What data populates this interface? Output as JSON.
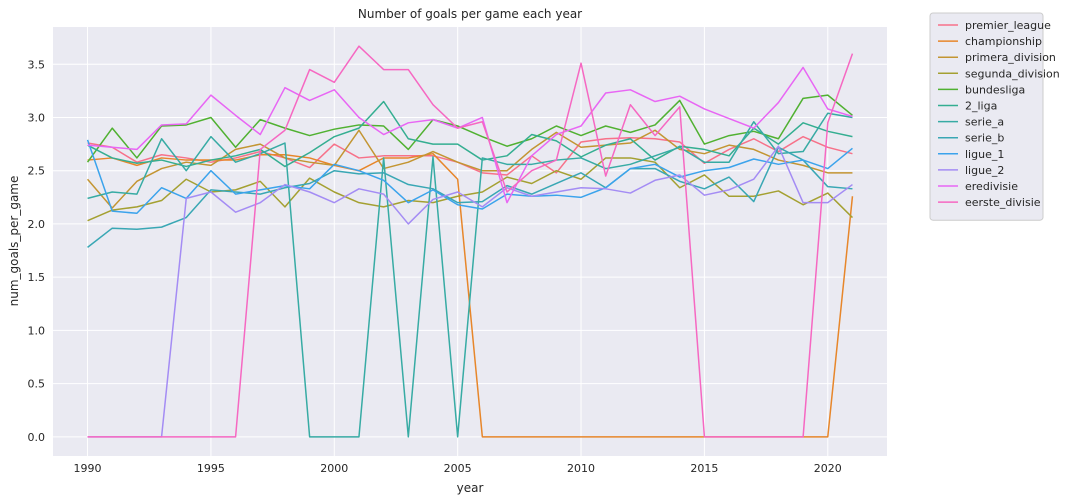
{
  "chart_data": {
    "type": "line",
    "title": "Number of goals per game each year",
    "xlabel": "year",
    "ylabel": "num_goals_per_game",
    "xlim": [
      1988.6,
      2022.4
    ],
    "ylim": [
      -0.18,
      3.85
    ],
    "xticks": [
      1990,
      1995,
      2000,
      2005,
      2010,
      2015,
      2020
    ],
    "yticks": [
      0.0,
      0.5,
      1.0,
      1.5,
      2.0,
      2.5,
      3.0,
      3.5
    ],
    "ytick_labels": [
      "0.0",
      "0.5",
      "1.0",
      "1.5",
      "2.0",
      "2.5",
      "3.0",
      "3.5"
    ],
    "grid": true,
    "legend_position": "outside-top-right",
    "x": [
      1990,
      1991,
      1992,
      1993,
      1994,
      1995,
      1996,
      1997,
      1998,
      1999,
      2000,
      2001,
      2002,
      2003,
      2004,
      2005,
      2006,
      2007,
      2008,
      2009,
      2010,
      2011,
      2012,
      2013,
      2014,
      2015,
      2016,
      2017,
      2018,
      2019,
      2020,
      2021
    ],
    "series": [
      {
        "name": "premier_league",
        "color": "#f77189",
        "values": [
          2.76,
          2.72,
          2.58,
          2.65,
          2.62,
          2.58,
          2.62,
          2.68,
          2.62,
          2.53,
          2.75,
          2.62,
          2.64,
          2.64,
          2.64,
          2.58,
          2.48,
          2.46,
          2.64,
          2.48,
          2.77,
          2.8,
          2.81,
          2.8,
          2.77,
          2.57,
          2.7,
          2.8,
          2.68,
          2.82,
          2.72,
          2.66
        ]
      },
      {
        "name": "championship",
        "color": "#e7862a",
        "values": [
          2.6,
          2.62,
          2.55,
          2.62,
          2.6,
          2.6,
          2.6,
          2.65,
          2.65,
          2.62,
          2.55,
          2.5,
          2.62,
          2.62,
          2.66,
          2.42,
          0,
          0,
          0,
          0,
          0,
          0,
          0,
          0,
          0,
          0,
          0,
          0,
          0,
          0,
          0,
          2.26
        ]
      },
      {
        "name": "primera_division",
        "color": "#c39532",
        "values": [
          2.42,
          2.15,
          2.4,
          2.52,
          2.58,
          2.55,
          2.7,
          2.75,
          2.62,
          2.58,
          2.55,
          2.88,
          2.52,
          2.58,
          2.68,
          2.58,
          2.5,
          2.5,
          2.7,
          2.86,
          2.72,
          2.74,
          2.76,
          2.88,
          2.7,
          2.66,
          2.74,
          2.7,
          2.6,
          2.55,
          2.48,
          2.48
        ]
      },
      {
        "name": "segunda_division",
        "color": "#a4a031",
        "values": [
          2.03,
          2.13,
          2.16,
          2.22,
          2.42,
          2.3,
          2.32,
          2.4,
          2.16,
          2.43,
          2.3,
          2.2,
          2.16,
          2.22,
          2.2,
          2.26,
          2.3,
          2.44,
          2.38,
          2.5,
          2.42,
          2.62,
          2.62,
          2.58,
          2.34,
          2.46,
          2.26,
          2.26,
          2.31,
          2.18,
          2.29,
          2.06
        ]
      },
      {
        "name": "bundesliga",
        "color": "#50b131",
        "values": [
          2.58,
          2.9,
          2.62,
          2.92,
          2.93,
          3.0,
          2.72,
          2.98,
          2.9,
          2.83,
          2.89,
          2.93,
          2.92,
          2.7,
          2.98,
          2.92,
          2.82,
          2.73,
          2.8,
          2.92,
          2.83,
          2.92,
          2.86,
          2.93,
          3.16,
          2.75,
          2.83,
          2.87,
          2.8,
          3.18,
          3.21,
          3.02
        ]
      },
      {
        "name": "2_liga",
        "color": "#34ae91",
        "values": [
          2.74,
          2.62,
          2.57,
          2.6,
          2.54,
          2.6,
          2.64,
          2.7,
          2.54,
          2.67,
          2.82,
          2.9,
          3.15,
          2.8,
          2.75,
          2.75,
          2.6,
          2.64,
          2.84,
          2.78,
          2.63,
          2.74,
          2.8,
          2.6,
          2.73,
          2.7,
          2.64,
          2.9,
          2.75,
          2.95,
          2.87,
          2.82
        ]
      },
      {
        "name": "serie_a",
        "color": "#37aba4",
        "values": [
          2.24,
          2.3,
          2.28,
          2.8,
          2.5,
          2.82,
          2.58,
          2.66,
          2.76,
          0,
          0,
          0,
          2.62,
          0,
          2.63,
          0,
          2.62,
          2.56,
          2.56,
          2.6,
          2.62,
          2.52,
          2.56,
          2.64,
          2.72,
          2.58,
          2.58,
          2.96,
          2.66,
          2.68,
          3.04,
          3.0
        ]
      },
      {
        "name": "serie_b",
        "color": "#39a7b4",
        "values": [
          1.78,
          1.96,
          1.95,
          1.97,
          2.06,
          2.32,
          2.3,
          2.28,
          2.34,
          2.38,
          2.5,
          2.47,
          2.48,
          2.37,
          2.33,
          2.2,
          2.21,
          2.36,
          2.28,
          2.38,
          2.48,
          2.34,
          2.52,
          2.52,
          2.4,
          2.33,
          2.44,
          2.21,
          2.72,
          2.6,
          2.35,
          2.33
        ]
      },
      {
        "name": "ligue_1",
        "color": "#3ba3ec",
        "values": [
          2.79,
          2.12,
          2.1,
          2.34,
          2.24,
          2.5,
          2.28,
          2.32,
          2.36,
          2.33,
          2.56,
          2.5,
          2.41,
          2.2,
          2.32,
          2.18,
          2.14,
          2.28,
          2.26,
          2.27,
          2.25,
          2.34,
          2.52,
          2.56,
          2.44,
          2.5,
          2.53,
          2.61,
          2.56,
          2.6,
          2.52,
          2.71
        ]
      },
      {
        "name": "ligue_2",
        "color": "#a48cf4",
        "values": [
          0,
          0,
          0,
          0,
          2.24,
          2.3,
          2.11,
          2.2,
          2.37,
          2.3,
          2.2,
          2.33,
          2.28,
          2.0,
          2.23,
          2.3,
          2.16,
          2.34,
          2.26,
          2.3,
          2.34,
          2.33,
          2.29,
          2.41,
          2.46,
          2.27,
          2.32,
          2.42,
          2.73,
          2.2,
          2.2,
          2.37
        ]
      },
      {
        "name": "eredivisie",
        "color": "#e866f4",
        "values": [
          2.74,
          2.72,
          2.7,
          2.93,
          2.94,
          3.21,
          3.02,
          2.84,
          3.28,
          3.16,
          3.26,
          3.0,
          2.84,
          2.95,
          2.98,
          2.9,
          3.0,
          2.2,
          2.64,
          2.84,
          2.92,
          3.23,
          3.26,
          3.15,
          3.2,
          3.08,
          2.99,
          2.9,
          3.14,
          3.47,
          3.08,
          3.01
        ]
      },
      {
        "name": "eerste_divisie",
        "color": "#f668c2",
        "values": [
          0,
          0,
          0,
          0,
          0,
          0,
          0,
          2.7,
          2.88,
          3.45,
          3.33,
          3.67,
          3.45,
          3.45,
          3.12,
          2.9,
          2.96,
          2.3,
          2.5,
          2.6,
          3.51,
          2.45,
          3.12,
          2.83,
          3.1,
          0,
          0,
          0,
          0,
          0,
          2.95,
          3.6
        ]
      }
    ]
  }
}
